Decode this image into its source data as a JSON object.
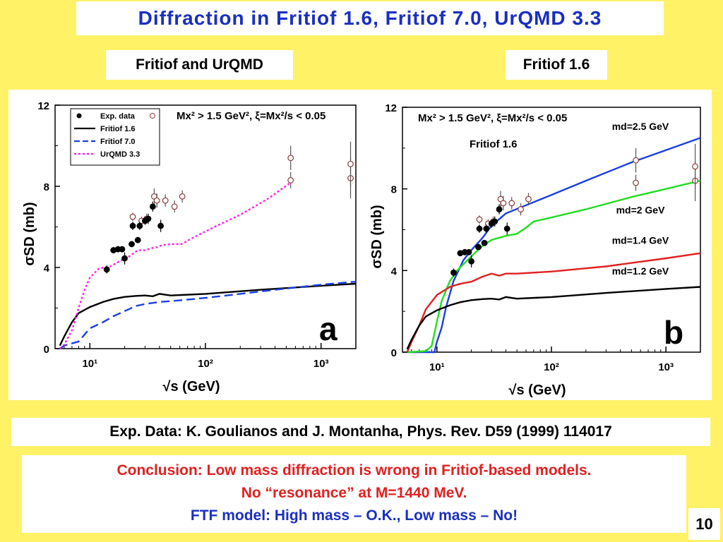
{
  "slide": {
    "title": "Diffraction in Fritiof 1.6, Fritiof 7.0, UrQMD 3.3",
    "panel_labels": [
      "Fritiof and UrQMD",
      "Fritiof 1.6"
    ],
    "reference": "Exp. Data: K. Goulianos and J. Montanha, Phys. Rev. D59 (1999) 114017",
    "conclusion_line1": "Conclusion: Low mass diffraction is wrong in Fritiof-based models.",
    "conclusion_line2": "No “resonance” at M=1440 MeV.",
    "conclusion_line3": "FTF model: High mass – O.K., Low mass – No!",
    "page_number": "10",
    "colors": {
      "background": "#fff266",
      "title": "#1a2fc0",
      "conclusion_red": "#e02020",
      "conclusion_blue": "#1a2fc0"
    }
  },
  "chart_data": [
    {
      "type": "line",
      "panel_letter": "a",
      "xlabel": "√s   (GeV)",
      "ylabel": "σSD  (mb)",
      "xscale": "log",
      "xlim": [
        5,
        2000
      ],
      "ylim": [
        0,
        12
      ],
      "xticks": [
        10,
        100,
        1000
      ],
      "xtick_labels": [
        "10¹",
        "10²",
        "10³"
      ],
      "yticks": [
        0,
        4,
        8,
        12
      ],
      "cut_label": "Mx² > 1.5 GeV², ξ=Mx²/s < 0.05",
      "legend": {
        "position": "top-left",
        "entries": [
          "Exp. data",
          "Fritiof 1.6",
          "Fritiof 7.0",
          "UrQMD 3.3"
        ]
      },
      "exp_data_filled": {
        "x": [
          14,
          16,
          17.5,
          19,
          20,
          23,
          23.5,
          26,
          27,
          30,
          32,
          35,
          41
        ],
        "y": [
          3.9,
          4.85,
          4.9,
          4.9,
          4.45,
          5.15,
          6.05,
          5.35,
          6.05,
          6.3,
          6.4,
          7.0,
          6.05
        ],
        "err": [
          0.2,
          0.15,
          0.15,
          0.15,
          0.3,
          0.15,
          0.2,
          0.15,
          0.2,
          0.2,
          0.25,
          0.25,
          0.3
        ]
      },
      "exp_data_open": {
        "x": [
          23.5,
          28,
          31,
          36,
          38,
          45,
          54,
          63,
          546,
          546,
          1800,
          1800
        ],
        "y": [
          6.5,
          6.3,
          6.4,
          7.5,
          7.3,
          7.3,
          7.0,
          7.5,
          8.3,
          9.4,
          8.4,
          9.1
        ],
        "err": [
          0.2,
          0.2,
          0.25,
          0.4,
          0.35,
          0.3,
          0.3,
          0.3,
          0.4,
          0.6,
          1.0,
          1.1
        ]
      },
      "series": [
        {
          "name": "Fritiof 1.6",
          "color": "#000000",
          "dash": "solid",
          "x": [
            5.5,
            6,
            7,
            8,
            10,
            13,
            16,
            20,
            25,
            30,
            35,
            40,
            50,
            100,
            300,
            1000,
            2000
          ],
          "y": [
            0.15,
            0.6,
            1.3,
            1.75,
            2.05,
            2.3,
            2.45,
            2.55,
            2.6,
            2.62,
            2.58,
            2.7,
            2.62,
            2.7,
            2.9,
            3.1,
            3.2
          ]
        },
        {
          "name": "Fritiof 7.0",
          "color": "#1a3fe0",
          "dash": "dashed",
          "x": [
            5.5,
            6,
            8,
            10,
            13,
            16,
            20,
            25,
            30,
            40,
            60,
            100,
            200,
            400,
            1000,
            2000
          ],
          "y": [
            0.0,
            0.15,
            0.35,
            1.0,
            1.3,
            1.6,
            1.85,
            2.1,
            2.2,
            2.3,
            2.38,
            2.5,
            2.7,
            2.9,
            3.15,
            3.3
          ]
        },
        {
          "name": "UrQMD 3.3",
          "color": "#ff1ee6",
          "dash": "dotted",
          "x": [
            5.5,
            6,
            7,
            8,
            9,
            10,
            12,
            15,
            18,
            22,
            26,
            30,
            34,
            38,
            42,
            50,
            62,
            80,
            120,
            200,
            350,
            550
          ],
          "y": [
            0.0,
            0.2,
            0.9,
            2.0,
            2.9,
            3.5,
            3.95,
            4.05,
            4.3,
            4.55,
            4.85,
            4.85,
            4.95,
            5.0,
            5.1,
            5.15,
            5.15,
            5.5,
            6.0,
            6.6,
            7.4,
            8.2
          ]
        }
      ]
    },
    {
      "type": "line",
      "panel_letter": "b",
      "xlabel": "√s   (GeV)",
      "ylabel": "σSD  (mb)",
      "xscale": "log",
      "xlim": [
        5,
        2000
      ],
      "ylim": [
        0,
        12
      ],
      "xticks": [
        10,
        100,
        1000
      ],
      "xtick_labels": [
        "10¹",
        "10²",
        "10³"
      ],
      "yticks": [
        0,
        4,
        8,
        12
      ],
      "cut_label": "Mx² > 1.5 GeV², ξ=Mx²/s < 0.05",
      "model_label": "Fritiof 1.6",
      "exp_data_filled": {
        "x": [
          14,
          16,
          17.5,
          19,
          20,
          23,
          23.5,
          26,
          27,
          30,
          32,
          35,
          41
        ],
        "y": [
          3.9,
          4.85,
          4.9,
          4.9,
          4.45,
          5.15,
          6.05,
          5.35,
          6.05,
          6.3,
          6.4,
          7.0,
          6.05
        ],
        "err": [
          0.2,
          0.15,
          0.15,
          0.15,
          0.3,
          0.15,
          0.2,
          0.15,
          0.2,
          0.2,
          0.25,
          0.25,
          0.3
        ]
      },
      "exp_data_open": {
        "x": [
          23.5,
          28,
          31,
          36,
          38,
          45,
          54,
          63,
          546,
          546,
          1800,
          1800
        ],
        "y": [
          6.5,
          6.3,
          6.4,
          7.5,
          7.3,
          7.3,
          7.0,
          7.5,
          8.3,
          9.4,
          8.4,
          9.1
        ],
        "err": [
          0.2,
          0.2,
          0.25,
          0.4,
          0.35,
          0.3,
          0.3,
          0.3,
          0.4,
          0.6,
          1.0,
          1.1
        ]
      },
      "series": [
        {
          "name": "md=2.5 GeV",
          "color": "#1a3fe0",
          "dash": "solid",
          "x": [
            5.5,
            8,
            9.5,
            10,
            11,
            12,
            14,
            17,
            20,
            25,
            30,
            40,
            60,
            100,
            200,
            500,
            1000,
            2000
          ],
          "y": [
            0.0,
            0.0,
            0.0,
            0.5,
            1.2,
            2.2,
            3.5,
            4.5,
            5.0,
            5.6,
            6.2,
            6.8,
            7.2,
            7.7,
            8.4,
            9.3,
            9.9,
            10.5
          ]
        },
        {
          "name": "md=2 GeV",
          "color": "#22dd22",
          "dash": "solid",
          "x": [
            5.5,
            8,
            9,
            10,
            11,
            13,
            15,
            20,
            25,
            30,
            40,
            50,
            60,
            70,
            100,
            200,
            500,
            1000,
            2000
          ],
          "y": [
            0.0,
            0.05,
            0.3,
            1.5,
            2.5,
            3.5,
            4.0,
            4.7,
            5.2,
            5.5,
            5.7,
            5.8,
            6.1,
            6.4,
            6.6,
            7.0,
            7.6,
            8.0,
            8.4
          ]
        },
        {
          "name": "md=1.4 GeV",
          "color": "#e02020",
          "dash": "solid",
          "x": [
            5.5,
            6,
            7,
            8,
            10,
            13,
            16,
            20,
            25,
            30,
            35,
            40,
            50,
            100,
            300,
            1000,
            2000
          ],
          "y": [
            0.0,
            0.5,
            1.3,
            2.1,
            2.8,
            3.2,
            3.35,
            3.45,
            3.7,
            3.85,
            3.75,
            3.85,
            3.85,
            3.95,
            4.2,
            4.6,
            4.85
          ]
        },
        {
          "name": "md=1.2 GeV",
          "color": "#000000",
          "dash": "solid",
          "x": [
            5.5,
            6,
            7,
            8,
            10,
            13,
            16,
            20,
            25,
            30,
            35,
            40,
            50,
            100,
            300,
            1000,
            2000
          ],
          "y": [
            0.15,
            0.6,
            1.3,
            1.75,
            2.05,
            2.3,
            2.45,
            2.55,
            2.6,
            2.62,
            2.58,
            2.7,
            2.62,
            2.7,
            2.9,
            3.1,
            3.2
          ]
        }
      ]
    }
  ]
}
